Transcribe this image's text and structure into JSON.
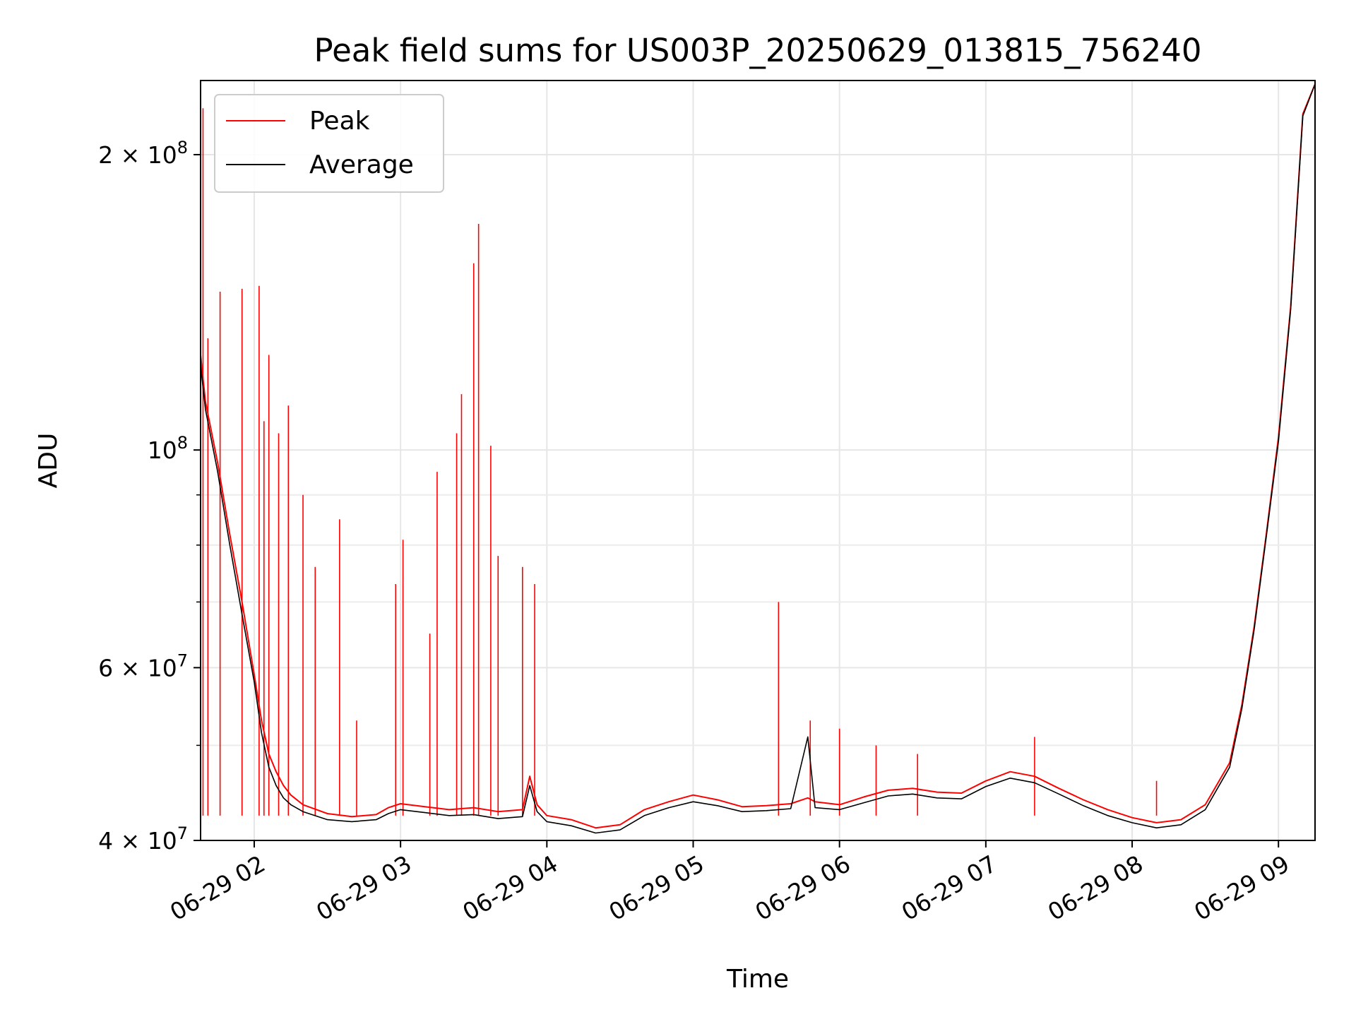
{
  "chart_data": {
    "type": "line",
    "title": "Peak field sums for US003P_20250629_013815_756240",
    "xlabel": "Time",
    "ylabel": "ADU",
    "xlim": [
      "2025-06-29 01:38",
      "2025-06-29 09:15"
    ],
    "ylim": [
      40000000,
      238000000
    ],
    "yscale": "log",
    "grid": true,
    "legend_position": "top-left",
    "x_ticks": [
      {
        "label": "06-29 02",
        "value": "2025-06-29 02:00"
      },
      {
        "label": "06-29 03",
        "value": "2025-06-29 03:00"
      },
      {
        "label": "06-29 04",
        "value": "2025-06-29 04:00"
      },
      {
        "label": "06-29 05",
        "value": "2025-06-29 05:00"
      },
      {
        "label": "06-29 06",
        "value": "2025-06-29 06:00"
      },
      {
        "label": "06-29 07",
        "value": "2025-06-29 07:00"
      },
      {
        "label": "06-29 08",
        "value": "2025-06-29 08:00"
      },
      {
        "label": "06-29 09",
        "value": "2025-06-29 09:00"
      }
    ],
    "y_ticks": [
      {
        "mantissa": "2",
        "base": "10",
        "exp": "8",
        "value": 200000000
      },
      {
        "mantissa": "",
        "base": "10",
        "exp": "8",
        "value": 100000000
      },
      {
        "mantissa": "6",
        "base": "10",
        "exp": "7",
        "value": 60000000
      },
      {
        "mantissa": "4",
        "base": "10",
        "exp": "7",
        "value": 40000000
      }
    ],
    "y_minor_ticks": [
      50000000,
      70000000,
      80000000,
      90000000
    ],
    "series": [
      {
        "name": "Peak",
        "color": "#ff0000",
        "x": [
          "2025-06-29 01:38",
          "2025-06-29 01:40",
          "2025-06-29 01:45",
          "2025-06-29 01:50",
          "2025-06-29 01:55",
          "2025-06-29 02:00",
          "2025-06-29 02:03",
          "2025-06-29 02:06",
          "2025-06-29 02:09",
          "2025-06-29 02:12",
          "2025-06-29 02:15",
          "2025-06-29 02:20",
          "2025-06-29 02:30",
          "2025-06-29 02:40",
          "2025-06-29 02:50",
          "2025-06-29 02:55",
          "2025-06-29 03:00",
          "2025-06-29 03:10",
          "2025-06-29 03:20",
          "2025-06-29 03:30",
          "2025-06-29 03:40",
          "2025-06-29 03:50",
          "2025-06-29 03:53",
          "2025-06-29 03:56",
          "2025-06-29 04:00",
          "2025-06-29 04:10",
          "2025-06-29 04:20",
          "2025-06-29 04:30",
          "2025-06-29 04:40",
          "2025-06-29 04:50",
          "2025-06-29 05:00",
          "2025-06-29 05:10",
          "2025-06-29 05:20",
          "2025-06-29 05:30",
          "2025-06-29 05:40",
          "2025-06-29 05:47",
          "2025-06-29 05:50",
          "2025-06-29 06:00",
          "2025-06-29 06:10",
          "2025-06-29 06:20",
          "2025-06-29 06:30",
          "2025-06-29 06:40",
          "2025-06-29 06:50",
          "2025-06-29 07:00",
          "2025-06-29 07:10",
          "2025-06-29 07:20",
          "2025-06-29 07:30",
          "2025-06-29 07:40",
          "2025-06-29 07:50",
          "2025-06-29 08:00",
          "2025-06-29 08:10",
          "2025-06-29 08:20",
          "2025-06-29 08:30",
          "2025-06-29 08:40",
          "2025-06-29 08:45",
          "2025-06-29 08:50",
          "2025-06-29 08:55",
          "2025-06-29 09:00",
          "2025-06-29 09:05",
          "2025-06-29 09:10",
          "2025-06-29 09:15"
        ],
        "y": [
          125000000,
          112000000,
          97000000,
          82000000,
          70000000,
          59000000,
          53000000,
          49000000,
          47000000,
          45500000,
          44500000,
          43500000,
          42600000,
          42300000,
          42500000,
          43200000,
          43600000,
          43300000,
          43000000,
          43200000,
          42800000,
          43000000,
          46500000,
          43500000,
          42400000,
          42000000,
          41200000,
          41500000,
          43000000,
          43800000,
          44500000,
          44000000,
          43300000,
          43400000,
          43600000,
          44200000,
          43800000,
          43500000,
          44300000,
          45000000,
          45200000,
          44800000,
          44700000,
          46000000,
          47000000,
          46500000,
          45200000,
          44000000,
          43000000,
          42200000,
          41700000,
          42000000,
          43500000,
          48000000,
          55000000,
          66000000,
          82000000,
          103000000,
          140000000,
          220000000,
          236000000
        ],
        "spikes": [
          {
            "x": "2025-06-29 01:39",
            "y": 223000000
          },
          {
            "x": "2025-06-29 01:41",
            "y": 130000000
          },
          {
            "x": "2025-06-29 01:46",
            "y": 145000000
          },
          {
            "x": "2025-06-29 01:55",
            "y": 146000000
          },
          {
            "x": "2025-06-29 02:02",
            "y": 147000000
          },
          {
            "x": "2025-06-29 02:04",
            "y": 107000000
          },
          {
            "x": "2025-06-29 02:06",
            "y": 125000000
          },
          {
            "x": "2025-06-29 02:10",
            "y": 104000000
          },
          {
            "x": "2025-06-29 02:14",
            "y": 111000000
          },
          {
            "x": "2025-06-29 02:20",
            "y": 90000000
          },
          {
            "x": "2025-06-29 02:25",
            "y": 76000000
          },
          {
            "x": "2025-06-29 02:35",
            "y": 85000000
          },
          {
            "x": "2025-06-29 02:42",
            "y": 53000000
          },
          {
            "x": "2025-06-29 02:58",
            "y": 73000000
          },
          {
            "x": "2025-06-29 03:01",
            "y": 81000000
          },
          {
            "x": "2025-06-29 03:12",
            "y": 65000000
          },
          {
            "x": "2025-06-29 03:15",
            "y": 95000000
          },
          {
            "x": "2025-06-29 03:23",
            "y": 104000000
          },
          {
            "x": "2025-06-29 03:25",
            "y": 114000000
          },
          {
            "x": "2025-06-29 03:30",
            "y": 155000000
          },
          {
            "x": "2025-06-29 03:32",
            "y": 170000000
          },
          {
            "x": "2025-06-29 03:37",
            "y": 101000000
          },
          {
            "x": "2025-06-29 03:40",
            "y": 78000000
          },
          {
            "x": "2025-06-29 03:50",
            "y": 76000000
          },
          {
            "x": "2025-06-29 03:55",
            "y": 73000000
          },
          {
            "x": "2025-06-29 05:35",
            "y": 70000000
          },
          {
            "x": "2025-06-29 05:48",
            "y": 53000000
          },
          {
            "x": "2025-06-29 06:00",
            "y": 52000000
          },
          {
            "x": "2025-06-29 06:15",
            "y": 50000000
          },
          {
            "x": "2025-06-29 06:32",
            "y": 49000000
          },
          {
            "x": "2025-06-29 07:20",
            "y": 51000000
          },
          {
            "x": "2025-06-29 08:10",
            "y": 46000000
          }
        ]
      },
      {
        "name": "Average",
        "color": "#000000",
        "x": [
          "2025-06-29 01:38",
          "2025-06-29 01:40",
          "2025-06-29 01:45",
          "2025-06-29 01:50",
          "2025-06-29 01:55",
          "2025-06-29 02:00",
          "2025-06-29 02:03",
          "2025-06-29 02:06",
          "2025-06-29 02:09",
          "2025-06-29 02:12",
          "2025-06-29 02:15",
          "2025-06-29 02:20",
          "2025-06-29 02:30",
          "2025-06-29 02:40",
          "2025-06-29 02:50",
          "2025-06-29 02:55",
          "2025-06-29 03:00",
          "2025-06-29 03:10",
          "2025-06-29 03:20",
          "2025-06-29 03:30",
          "2025-06-29 03:40",
          "2025-06-29 03:50",
          "2025-06-29 03:53",
          "2025-06-29 03:56",
          "2025-06-29 04:00",
          "2025-06-29 04:10",
          "2025-06-29 04:20",
          "2025-06-29 04:30",
          "2025-06-29 04:40",
          "2025-06-29 04:50",
          "2025-06-29 05:00",
          "2025-06-29 05:10",
          "2025-06-29 05:20",
          "2025-06-29 05:30",
          "2025-06-29 05:40",
          "2025-06-29 05:47",
          "2025-06-29 05:50",
          "2025-06-29 06:00",
          "2025-06-29 06:10",
          "2025-06-29 06:20",
          "2025-06-29 06:30",
          "2025-06-29 06:40",
          "2025-06-29 06:50",
          "2025-06-29 07:00",
          "2025-06-29 07:10",
          "2025-06-29 07:20",
          "2025-06-29 07:30",
          "2025-06-29 07:40",
          "2025-06-29 07:50",
          "2025-06-29 08:00",
          "2025-06-29 08:10",
          "2025-06-29 08:20",
          "2025-06-29 08:30",
          "2025-06-29 08:40",
          "2025-06-29 08:45",
          "2025-06-29 08:50",
          "2025-06-29 08:55",
          "2025-06-29 09:00",
          "2025-06-29 09:05",
          "2025-06-29 09:10",
          "2025-06-29 09:15"
        ],
        "y": [
          122000000,
          110000000,
          95000000,
          80000000,
          68000000,
          58000000,
          51500000,
          47500000,
          45500000,
          44200000,
          43500000,
          42800000,
          42000000,
          41800000,
          42000000,
          42600000,
          43000000,
          42700000,
          42400000,
          42500000,
          42100000,
          42300000,
          45500000,
          42800000,
          41800000,
          41400000,
          40700000,
          41000000,
          42400000,
          43200000,
          43800000,
          43400000,
          42800000,
          42900000,
          43100000,
          51000000,
          43200000,
          43000000,
          43700000,
          44400000,
          44600000,
          44200000,
          44100000,
          45400000,
          46300000,
          45800000,
          44600000,
          43400000,
          42400000,
          41700000,
          41200000,
          41500000,
          43000000,
          47500000,
          54500000,
          65500000,
          81500000,
          102000000,
          139000000,
          219000000,
          236000000
        ]
      }
    ]
  }
}
